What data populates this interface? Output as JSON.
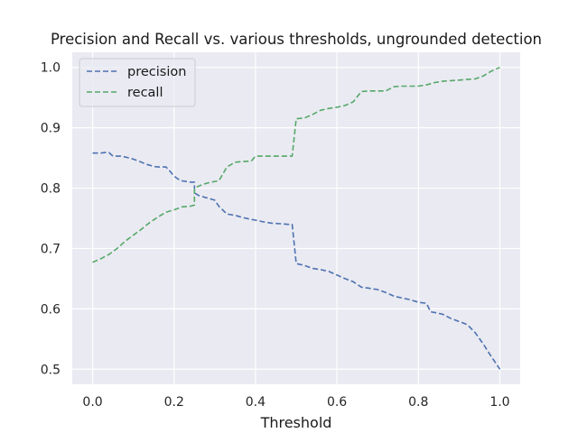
{
  "chart_data": {
    "type": "line",
    "title": "Precision and Recall vs. various thresholds, ungrounded detection",
    "xlabel": "Threshold",
    "ylabel": "",
    "xlim": [
      -0.05,
      1.05
    ],
    "ylim": [
      0.475,
      1.025
    ],
    "xticks": [
      0.0,
      0.2,
      0.4,
      0.6,
      0.8,
      1.0
    ],
    "yticks": [
      0.5,
      0.6,
      0.7,
      0.8,
      0.9,
      1.0
    ],
    "xtick_labels": [
      "0.0",
      "0.2",
      "0.4",
      "0.6",
      "0.8",
      "1.0"
    ],
    "ytick_labels": [
      "0.5",
      "0.6",
      "0.7",
      "0.8",
      "0.9",
      "1.0"
    ],
    "grid": true,
    "legend_position": "top-left",
    "background": "#eaeaf2",
    "series": [
      {
        "name": "precision",
        "color": "#4c72b0",
        "style": "dashed",
        "x": [
          0.0,
          0.02,
          0.03,
          0.04,
          0.05,
          0.06,
          0.07,
          0.09,
          0.1,
          0.12,
          0.13,
          0.15,
          0.16,
          0.18,
          0.19,
          0.2,
          0.21,
          0.22,
          0.24,
          0.25,
          0.25,
          0.26,
          0.28,
          0.3,
          0.31,
          0.33,
          0.35,
          0.37,
          0.39,
          0.4,
          0.42,
          0.44,
          0.46,
          0.48,
          0.49,
          0.5,
          0.52,
          0.54,
          0.56,
          0.58,
          0.6,
          0.62,
          0.64,
          0.66,
          0.68,
          0.7,
          0.72,
          0.74,
          0.76,
          0.78,
          0.8,
          0.82,
          0.83,
          0.84,
          0.86,
          0.88,
          0.9,
          0.92,
          0.94,
          0.96,
          0.98,
          1.0
        ],
        "y": [
          0.858,
          0.858,
          0.859,
          0.859,
          0.853,
          0.853,
          0.853,
          0.85,
          0.848,
          0.843,
          0.84,
          0.836,
          0.835,
          0.835,
          0.828,
          0.82,
          0.815,
          0.812,
          0.81,
          0.81,
          0.792,
          0.788,
          0.784,
          0.78,
          0.77,
          0.757,
          0.755,
          0.751,
          0.748,
          0.747,
          0.744,
          0.742,
          0.741,
          0.74,
          0.74,
          0.675,
          0.672,
          0.667,
          0.665,
          0.662,
          0.656,
          0.65,
          0.645,
          0.636,
          0.634,
          0.632,
          0.627,
          0.621,
          0.618,
          0.615,
          0.611,
          0.609,
          0.595,
          0.594,
          0.591,
          0.584,
          0.579,
          0.574,
          0.56,
          0.541,
          0.52,
          0.5
        ]
      },
      {
        "name": "recall",
        "color": "#55a868",
        "style": "dashed",
        "x": [
          0.0,
          0.02,
          0.04,
          0.06,
          0.08,
          0.1,
          0.12,
          0.14,
          0.16,
          0.18,
          0.2,
          0.22,
          0.24,
          0.25,
          0.25,
          0.27,
          0.29,
          0.31,
          0.33,
          0.35,
          0.37,
          0.39,
          0.4,
          0.42,
          0.44,
          0.46,
          0.48,
          0.49,
          0.5,
          0.52,
          0.54,
          0.56,
          0.58,
          0.6,
          0.62,
          0.64,
          0.66,
          0.68,
          0.7,
          0.72,
          0.74,
          0.76,
          0.78,
          0.8,
          0.82,
          0.84,
          0.86,
          0.88,
          0.9,
          0.92,
          0.94,
          0.96,
          0.98,
          1.0
        ],
        "y": [
          0.677,
          0.683,
          0.69,
          0.7,
          0.712,
          0.722,
          0.732,
          0.743,
          0.752,
          0.76,
          0.764,
          0.769,
          0.77,
          0.772,
          0.8,
          0.806,
          0.81,
          0.812,
          0.835,
          0.843,
          0.844,
          0.845,
          0.853,
          0.853,
          0.853,
          0.853,
          0.853,
          0.853,
          0.915,
          0.916,
          0.922,
          0.929,
          0.932,
          0.934,
          0.937,
          0.943,
          0.96,
          0.961,
          0.961,
          0.961,
          0.968,
          0.969,
          0.969,
          0.969,
          0.971,
          0.975,
          0.977,
          0.978,
          0.979,
          0.98,
          0.981,
          0.986,
          0.994,
          1.0
        ]
      }
    ]
  }
}
